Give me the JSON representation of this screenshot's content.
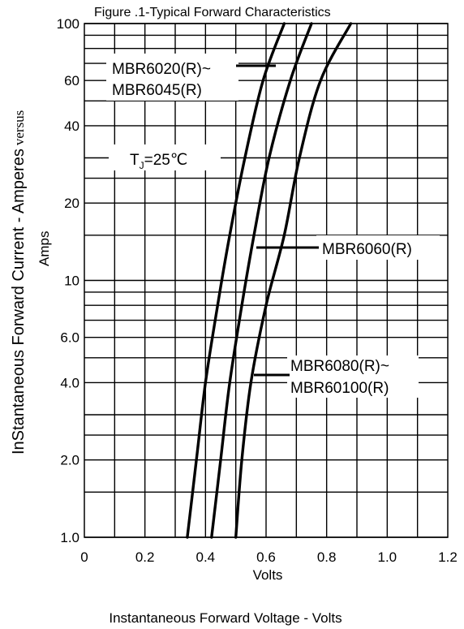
{
  "chart_data": {
    "type": "line",
    "title": "Figure .1-Typical Forward Characteristics",
    "xlabel": "Volts",
    "xlabel_bottom": "Instantaneous Forward Voltage - Volts",
    "ylabel_line1": "InStantaneous Forward Current - Amperes",
    "ylabel_versus": "versus",
    "ylabel_line2": "Amps",
    "xlim": [
      0,
      1.2
    ],
    "ylim": [
      1.0,
      100
    ],
    "yscale": "log",
    "grid": true,
    "x_ticks": [
      {
        "value": 0,
        "label": "0"
      },
      {
        "value": 0.2,
        "label": "0.2"
      },
      {
        "value": 0.4,
        "label": "0.4"
      },
      {
        "value": 0.6,
        "label": "0.6"
      },
      {
        "value": 0.8,
        "label": "0.8"
      },
      {
        "value": 1.0,
        "label": "1.0"
      },
      {
        "value": 1.2,
        "label": "1.2"
      }
    ],
    "y_ticks": [
      {
        "value": 1,
        "label": "1.0"
      },
      {
        "value": 2,
        "label": "2.0"
      },
      {
        "value": 4,
        "label": "4.0"
      },
      {
        "value": 6,
        "label": "6.0"
      },
      {
        "value": 10,
        "label": "10"
      },
      {
        "value": 20,
        "label": "20"
      },
      {
        "value": 40,
        "label": "40"
      },
      {
        "value": 60,
        "label": "60"
      },
      {
        "value": 100,
        "label": "100"
      }
    ],
    "condition_label": {
      "main": "T",
      "sub": "J",
      "rest": "=25℃"
    },
    "series": [
      {
        "labels": [
          "MBR6020(R)~",
          "MBR6045(R)"
        ],
        "x": [
          0.34,
          0.37,
          0.4,
          0.44,
          0.48,
          0.53,
          0.59,
          0.66
        ],
        "y": [
          1.0,
          2.0,
          4.0,
          8.0,
          15,
          30,
          60,
          100
        ]
      },
      {
        "labels": [
          "MBR6060(R)"
        ],
        "x": [
          0.42,
          0.45,
          0.48,
          0.52,
          0.56,
          0.61,
          0.68,
          0.75
        ],
        "y": [
          1.0,
          2.0,
          4.0,
          8.0,
          15,
          30,
          60,
          100
        ]
      },
      {
        "labels": [
          "MBR6080(R)~",
          "MBR60100(R)"
        ],
        "x": [
          0.5,
          0.52,
          0.55,
          0.6,
          0.66,
          0.71,
          0.78,
          0.88
        ],
        "y": [
          1.0,
          2.0,
          4.0,
          8.0,
          15,
          30,
          60,
          100
        ]
      }
    ],
    "grid_y": [
      1,
      1.5,
      2,
      2.5,
      3,
      4,
      5,
      6,
      7,
      8,
      9,
      10,
      15,
      20,
      25,
      30,
      40,
      50,
      60,
      70,
      80,
      90,
      100
    ]
  }
}
